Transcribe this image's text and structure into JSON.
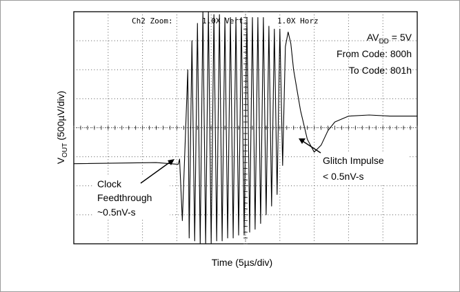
{
  "chart_data": {
    "type": "line",
    "title": "",
    "scope_header": {
      "channel_zoom": "Ch2 Zoom:",
      "vertical": "1.0X Vert",
      "horizontal": "1.0X Horz"
    },
    "xlabel": "Time (5µs/div)",
    "ylabel": {
      "prefix": "V",
      "subscript": "OUT",
      "suffix": " (500µV/div)"
    },
    "grid": {
      "divisions_x": 10,
      "divisions_y": 8,
      "minor_ticks_per_division": 5,
      "style": "dotted",
      "center_axes": true
    },
    "xlim": [
      0,
      50
    ],
    "ylim": [
      -2000,
      2000
    ],
    "units": {
      "x": "µs",
      "y": "µV"
    },
    "series": [
      {
        "color": "#000000",
        "x": [
          0,
          12,
          15.2,
          15.4,
          15.8,
          16.6,
          16.8,
          17.2,
          17.6,
          18.0,
          18.4,
          18.8,
          19.2,
          19.6,
          20.0,
          20.4,
          20.8,
          21.2,
          21.6,
          22.0,
          22.4,
          22.8,
          23.2,
          23.6,
          24.0,
          24.4,
          24.8,
          25.2,
          25.6,
          26.0,
          26.4,
          26.8,
          27.2,
          27.6,
          28.0,
          28.4,
          28.8,
          29.2,
          29.6,
          30.0,
          30.4,
          30.8,
          31.2,
          31.6,
          32.0,
          33.0,
          34.0,
          35.0,
          36.0,
          37.0,
          38.0,
          39.0,
          40.0,
          43.0,
          46.0,
          50.0
        ],
        "y": [
          -620,
          -600,
          -630,
          -540,
          -1600,
          1000,
          -1900,
          1500,
          -1950,
          1800,
          -2000,
          2000,
          -2000,
          2000,
          -2000,
          1950,
          -1950,
          1950,
          -1950,
          1900,
          -1900,
          1900,
          -1900,
          1900,
          -1850,
          1900,
          -1850,
          1900,
          -1800,
          1900,
          -1750,
          1900,
          -1650,
          1900,
          -1500,
          1750,
          -1350,
          1700,
          -1150,
          1700,
          -650,
          1400,
          1650,
          1450,
          1000,
          300,
          -200,
          -420,
          -300,
          -50,
          100,
          150,
          200,
          220,
          200,
          200
        ]
      }
    ],
    "annotations": {
      "supply": {
        "prefix": "AV",
        "subscript": "DD",
        "suffix": " = 5V"
      },
      "from_code": "From Code: 800h",
      "to_code": "To Code: 801h",
      "clock_feedthrough": [
        "Clock",
        "Feedthrough",
        "~0.5nV-s"
      ],
      "glitch_impulse": [
        "Glitch Impulse",
        "< 0.5nV-s"
      ]
    }
  }
}
